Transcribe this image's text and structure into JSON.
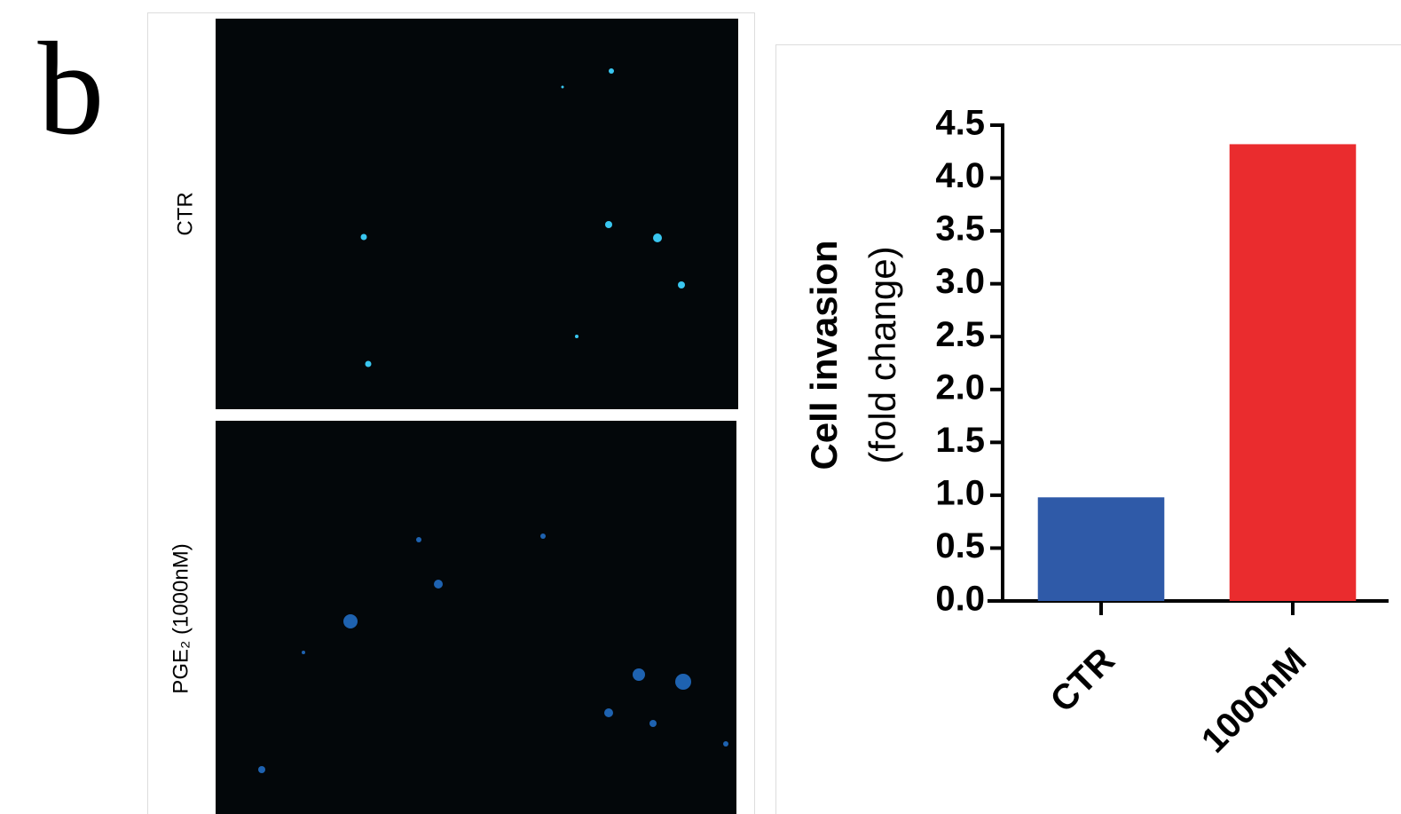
{
  "panel_label": "b",
  "image_labels": [
    "CTR",
    "PGE₂ (1000nM)"
  ],
  "chart_data": {
    "type": "bar",
    "y_label": [
      "Cell invasion",
      "(fold change)"
    ],
    "categories": [
      "CTR",
      "1000nM"
    ],
    "values": [
      0.98,
      4.32
    ],
    "colors": [
      "#2f5aa8",
      "#ea2c2e"
    ],
    "ylim": [
      0,
      4.5
    ],
    "yticks": [
      {
        "value": 0,
        "label": "0.0"
      },
      0.5,
      {
        "value": 1,
        "label": "1.0"
      },
      1.5,
      {
        "value": 2,
        "label": "2.0"
      },
      2.5,
      {
        "value": 3,
        "label": "3.0"
      },
      3.5,
      {
        "value": 4,
        "label": "4.0"
      },
      4.5
    ]
  }
}
